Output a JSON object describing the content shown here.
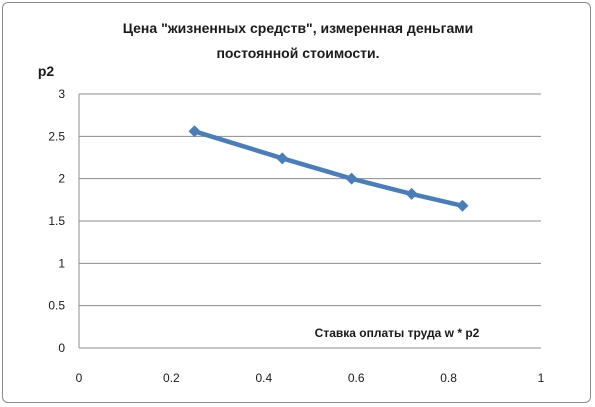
{
  "chart_data": {
    "type": "line",
    "title_line1": "Цена \"жизненных средств\", измеренная деньгами",
    "title_line2": "постоянной стоимости.",
    "ylabel": "p2",
    "annotation": "Ставка оплаты труда w * p2",
    "xlim": [
      0,
      1
    ],
    "ylim": [
      0,
      3
    ],
    "x_ticks": [
      "0",
      "0.2",
      "0.4",
      "0.6",
      "0.8",
      "1"
    ],
    "y_ticks": [
      "0",
      "0.5",
      "1",
      "1.5",
      "2",
      "2.5",
      "3"
    ],
    "grid": "horizontal",
    "series": [
      {
        "color": "#4a7ebb",
        "x": [
          0.25,
          0.44,
          0.59,
          0.72,
          0.83
        ],
        "y": [
          2.56,
          2.24,
          2.0,
          1.82,
          1.68
        ]
      }
    ]
  }
}
